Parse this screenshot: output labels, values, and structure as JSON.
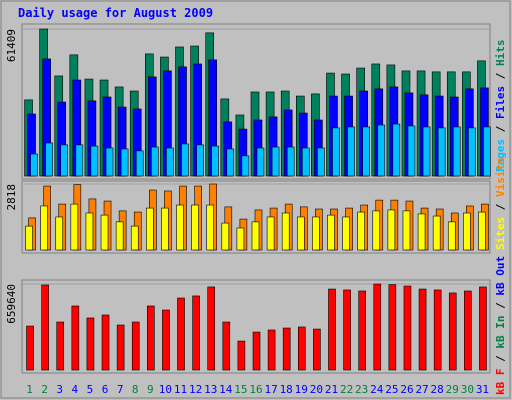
{
  "chart_data": [
    {
      "type": "bar",
      "title": "Daily usage for August 2009",
      "categories": [
        "1",
        "2",
        "3",
        "4",
        "5",
        "6",
        "7",
        "8",
        "9",
        "10",
        "11",
        "12",
        "13",
        "14",
        "15",
        "16",
        "17",
        "18",
        "19",
        "20",
        "21",
        "22",
        "23",
        "24",
        "25",
        "26",
        "27",
        "28",
        "29",
        "30",
        "31"
      ],
      "category_colors": [
        "#008040",
        "#008040",
        "#0000ff",
        "#0000ff",
        "#0000ff",
        "#0000ff",
        "#0000ff",
        "#008040",
        "#008040",
        "#0000ff",
        "#0000ff",
        "#0000ff",
        "#0000ff",
        "#0000ff",
        "#008040",
        "#008040",
        "#0000ff",
        "#0000ff",
        "#0000ff",
        "#0000ff",
        "#0000ff",
        "#008040",
        "#008040",
        "#0000ff",
        "#0000ff",
        "#0000ff",
        "#0000ff",
        "#0000ff",
        "#008040",
        "#008040",
        "#0000ff"
      ],
      "ylim": [
        0,
        61409
      ],
      "yticks": [
        61409
      ],
      "legend_separator": " / ",
      "series": [
        {
          "name": "Hits",
          "color": "#00805c",
          "values": [
            31800,
            61409,
            41800,
            50600,
            40500,
            40100,
            37200,
            35500,
            51000,
            49700,
            53900,
            54300,
            59800,
            32200,
            25500,
            35100,
            35100,
            35500,
            33400,
            34300,
            43000,
            42600,
            45100,
            46800,
            46400,
            43900,
            43900,
            43500,
            43500,
            43500,
            48100
          ]
        },
        {
          "name": "Files",
          "color": "#0000ff",
          "values": [
            25900,
            48900,
            30900,
            40100,
            31400,
            33000,
            28800,
            28000,
            41400,
            43900,
            45600,
            46800,
            48500,
            22600,
            19600,
            23400,
            24700,
            27600,
            26300,
            23400,
            33400,
            33400,
            35500,
            36400,
            37200,
            34700,
            33900,
            33400,
            33000,
            36400,
            36800
          ]
        },
        {
          "name": "Pages",
          "color": "#00c0ff",
          "values": [
            9200,
            13800,
            13000,
            13000,
            12500,
            11700,
            11300,
            10500,
            12100,
            11700,
            13400,
            13000,
            12500,
            11300,
            8400,
            11700,
            12100,
            12100,
            11700,
            11700,
            20100,
            20500,
            20500,
            21300,
            21700,
            20900,
            20500,
            20100,
            20500,
            20100,
            20500
          ]
        }
      ]
    },
    {
      "type": "bar",
      "ylim": [
        0,
        2818
      ],
      "yticks": [
        2818
      ],
      "legend_separator": " / ",
      "series": [
        {
          "name": "Visits",
          "color": "#ff8000",
          "values": [
            1370,
            2730,
            1960,
            2790,
            2180,
            2090,
            1670,
            1620,
            2560,
            2520,
            2730,
            2730,
            2818,
            1840,
            1320,
            1710,
            1790,
            1960,
            1840,
            1750,
            1750,
            1790,
            1920,
            2130,
            2130,
            2090,
            1790,
            1750,
            1580,
            1880,
            1960
          ]
        },
        {
          "name": "Sites",
          "color": "#ffff00",
          "values": [
            1020,
            1880,
            1410,
            1960,
            1580,
            1490,
            1200,
            1020,
            1790,
            1790,
            1920,
            1920,
            1920,
            1150,
            940,
            1200,
            1410,
            1580,
            1410,
            1410,
            1490,
            1410,
            1620,
            1670,
            1710,
            1670,
            1540,
            1450,
            1200,
            1580,
            1620
          ]
        }
      ]
    },
    {
      "type": "bar",
      "ylim": [
        0,
        659640
      ],
      "yticks": [
        659640
      ],
      "legend_separator": " / ",
      "series": [
        {
          "name": "kB F",
          "color": "#ff0000",
          "values": [
            337000,
            652000,
            368000,
            491000,
            399000,
            422000,
            345000,
            368000,
            491000,
            460000,
            552000,
            568000,
            637000,
            368000,
            222000,
            291000,
            307000,
            322000,
            330000,
            314000,
            621000,
            614000,
            606000,
            659640,
            655000,
            644000,
            621000,
            614000,
            591000,
            606000,
            637000
          ]
        }
      ],
      "extra_legend": [
        {
          "name": "kB In",
          "color": "#008040"
        },
        {
          "name": "kB Out",
          "color": "#0000ff"
        }
      ]
    }
  ]
}
